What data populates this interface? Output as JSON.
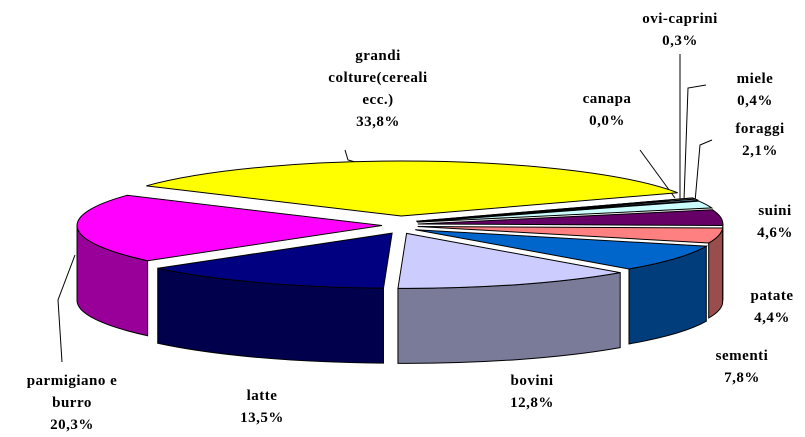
{
  "chart_data": {
    "type": "pie3d",
    "categories": [
      "grandi colture(cereali ecc.)",
      "canapa",
      "ovi-caprini",
      "miele",
      "foraggi",
      "suini",
      "patate",
      "sementi",
      "bovini",
      "latte",
      "parmigiano e burro"
    ],
    "values": [
      33.8,
      0.0,
      0.3,
      0.4,
      2.1,
      4.6,
      4.4,
      7.8,
      12.8,
      13.5,
      20.3
    ],
    "value_labels": [
      "33,8%",
      "0,0%",
      "0,3%",
      "0,4%",
      "2,1%",
      "4,6%",
      "4,4%",
      "7,8%",
      "12,8%",
      "13,5%",
      "20,3%"
    ],
    "colors": [
      "#FFFF00",
      "#FFFFFF",
      "#FFFFCC",
      "#99CCFF",
      "#CCFFFF",
      "#660066",
      "#FF8080",
      "#0066CC",
      "#CCCCFF",
      "#000080",
      "#FF00FF"
    ]
  }
}
